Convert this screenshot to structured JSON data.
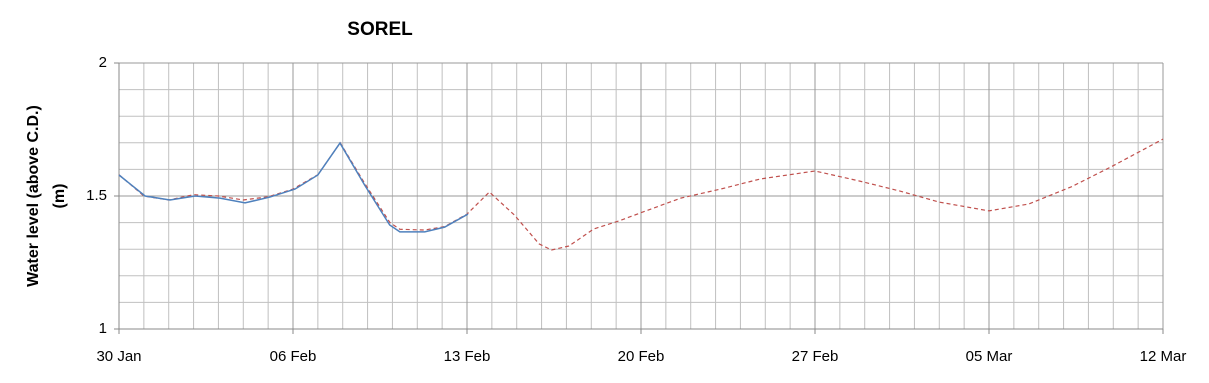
{
  "chart_data": {
    "type": "line",
    "title": "SOREL",
    "ylabel": [
      "Water level (above C.D.)",
      "(m)"
    ],
    "xlim": [
      0,
      42
    ],
    "xticks": [
      {
        "value": 0,
        "label": "30 Jan"
      },
      {
        "value": 7,
        "label": "06 Feb"
      },
      {
        "value": 14,
        "label": "13 Feb"
      },
      {
        "value": 21,
        "label": "20 Feb"
      },
      {
        "value": 28,
        "label": "27 Feb"
      },
      {
        "value": 35,
        "label": "05 Mar"
      },
      {
        "value": 42,
        "label": "12 Mar"
      }
    ],
    "ylim": [
      1,
      2
    ],
    "yticks": [
      1,
      1.5,
      2
    ],
    "grid": true,
    "minor_grid": {
      "x": 1,
      "y": 0.1
    },
    "series": [
      {
        "color": "#c0504d",
        "dash": true,
        "x": [
          0,
          1,
          2,
          3,
          4,
          5,
          6,
          7,
          8,
          8.9,
          9.9,
          10.9,
          11.3,
          12.3,
          13.1,
          14,
          14.9,
          15.9,
          16.9,
          17.4,
          18.1,
          19.1,
          20.1,
          21.4,
          22.6,
          24.2,
          25.8,
          28,
          29.8,
          31.4,
          33,
          35,
          36.6,
          38.3,
          39.9,
          42
        ],
        "values": [
          1.58,
          1.5,
          1.485,
          1.505,
          1.5,
          1.485,
          1.497,
          1.526,
          1.58,
          1.7,
          1.545,
          1.4,
          1.375,
          1.372,
          1.385,
          1.432,
          1.515,
          1.429,
          1.32,
          1.297,
          1.312,
          1.376,
          1.406,
          1.451,
          1.492,
          1.526,
          1.564,
          1.594,
          1.556,
          1.519,
          1.477,
          1.444,
          1.47,
          1.534,
          1.609,
          1.714
        ]
      },
      {
        "color": "#4f81bd",
        "dash": false,
        "x": [
          0,
          1.05,
          2.05,
          3.06,
          4.06,
          5.07,
          6.07,
          7.08,
          8,
          8.89,
          9.89,
          10.89,
          11.3,
          12.3,
          13.1,
          14.04
        ],
        "values": [
          1.579,
          1.5,
          1.485,
          1.5,
          1.492,
          1.474,
          1.496,
          1.526,
          1.579,
          1.699,
          1.54,
          1.391,
          1.365,
          1.365,
          1.383,
          1.432
        ]
      }
    ]
  }
}
